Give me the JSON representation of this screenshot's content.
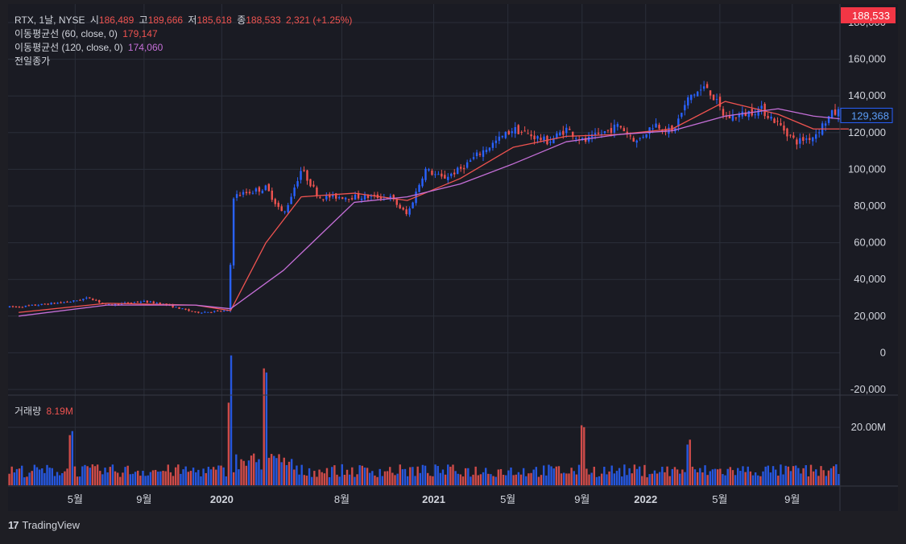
{
  "header": {
    "symbol_line": "RTX, 1날, NYSE",
    "open_label": "시",
    "open_value": "186,489",
    "high_label": "고",
    "high_value": "189,666",
    "low_label": "저",
    "low_value": "185,618",
    "close_label": "종",
    "close_value": "188,533",
    "change_value": "2,321 (+1.25%)",
    "ma60_label": "이동평균선 (60, close, 0)",
    "ma60_value": "179,147",
    "ma120_label": "이동평균선 (120, close, 0)",
    "ma120_value": "174,060",
    "prev_close_label": "전일종가"
  },
  "volume_pane": {
    "label": "거래량",
    "value": "8.19M"
  },
  "price_badges": {
    "last": "188,533",
    "marker": "129,368"
  },
  "branding": {
    "name": "TradingView"
  },
  "colors": {
    "background": "#1e1e24",
    "grid": "#2a2e39",
    "up": "#2962ff",
    "down": "#ef5350",
    "ma60": "#ef5350",
    "ma120": "#c56fd8",
    "text": "#d1d4dc",
    "badge_last": "#f23645",
    "badge_marker_border": "#2962ff"
  },
  "chart_data": [
    {
      "type": "candlestick",
      "title": "RTX, 1날, NYSE",
      "x_ticks": [
        "5월",
        "9월",
        "2020",
        "8월",
        "2021",
        "5월",
        "9월",
        "2022",
        "5월",
        "9월"
      ],
      "y_ticks": [
        "-20,000",
        "0",
        "20,000",
        "40,000",
        "60,000",
        "80,000",
        "100,000",
        "120,000",
        "140,000",
        "160,000",
        "180,000"
      ],
      "ylim": [
        -20000,
        190000
      ],
      "grid": true,
      "price_path": [
        {
          "x": "2019-01",
          "y": 25000
        },
        {
          "x": "2019-04",
          "y": 28000
        },
        {
          "x": "2019-05",
          "y": 30000
        },
        {
          "x": "2019-06",
          "y": 26000
        },
        {
          "x": "2019-08",
          "y": 28000
        },
        {
          "x": "2019-09",
          "y": 27000
        },
        {
          "x": "2019-11",
          "y": 22000
        },
        {
          "x": "2020-01",
          "y": 23000
        },
        {
          "x": "2020-01",
          "y": 85000
        },
        {
          "x": "2020-03",
          "y": 90000
        },
        {
          "x": "2020-04",
          "y": 75000
        },
        {
          "x": "2020-05",
          "y": 100000
        },
        {
          "x": "2020-06",
          "y": 85000
        },
        {
          "x": "2020-08",
          "y": 85000
        },
        {
          "x": "2020-10",
          "y": 85000
        },
        {
          "x": "2020-11",
          "y": 75000
        },
        {
          "x": "2020-12",
          "y": 100000
        },
        {
          "x": "2021-01",
          "y": 95000
        },
        {
          "x": "2021-02",
          "y": 100000
        },
        {
          "x": "2021-03",
          "y": 108000
        },
        {
          "x": "2021-04",
          "y": 115000
        },
        {
          "x": "2021-05",
          "y": 122000
        },
        {
          "x": "2021-07",
          "y": 115000
        },
        {
          "x": "2021-08",
          "y": 122000
        },
        {
          "x": "2021-09",
          "y": 115000
        },
        {
          "x": "2021-11",
          "y": 124000
        },
        {
          "x": "2021-12",
          "y": 115000
        },
        {
          "x": "2022-01",
          "y": 125000
        },
        {
          "x": "2022-02",
          "y": 120000
        },
        {
          "x": "2022-03",
          "y": 140000
        },
        {
          "x": "2022-04",
          "y": 145000
        },
        {
          "x": "2022-05",
          "y": 128000
        },
        {
          "x": "2022-06",
          "y": 130000
        },
        {
          "x": "2022-07",
          "y": 133000
        },
        {
          "x": "2022-08",
          "y": 125000
        },
        {
          "x": "2022-09",
          "y": 115000
        },
        {
          "x": "2022-10",
          "y": 118000
        },
        {
          "x": "2022-11",
          "y": 130000
        },
        {
          "x": "2022-12",
          "y": 133000
        }
      ],
      "series": [
        {
          "name": "이동평균선 (60, close, 0)",
          "values": [
            {
              "x": "2019-01",
              "y": 22000
            },
            {
              "x": "2019-06",
              "y": 27000
            },
            {
              "x": "2019-11",
              "y": 26000
            },
            {
              "x": "2020-01",
              "y": 23000
            },
            {
              "x": "2020-03",
              "y": 60000
            },
            {
              "x": "2020-05",
              "y": 85000
            },
            {
              "x": "2020-08",
              "y": 87000
            },
            {
              "x": "2020-11",
              "y": 83000
            },
            {
              "x": "2021-02",
              "y": 95000
            },
            {
              "x": "2021-05",
              "y": 112000
            },
            {
              "x": "2021-08",
              "y": 118000
            },
            {
              "x": "2021-11",
              "y": 119000
            },
            {
              "x": "2022-02",
              "y": 122000
            },
            {
              "x": "2022-05",
              "y": 137000
            },
            {
              "x": "2022-08",
              "y": 130000
            },
            {
              "x": "2022-10",
              "y": 122000
            },
            {
              "x": "2022-12",
              "y": 122000
            }
          ]
        },
        {
          "name": "이동평균선 (120, close, 0)",
          "values": [
            {
              "x": "2019-01",
              "y": 20000
            },
            {
              "x": "2019-06",
              "y": 26000
            },
            {
              "x": "2019-11",
              "y": 26000
            },
            {
              "x": "2020-01",
              "y": 24000
            },
            {
              "x": "2020-04",
              "y": 45000
            },
            {
              "x": "2020-08",
              "y": 82000
            },
            {
              "x": "2020-11",
              "y": 85000
            },
            {
              "x": "2021-02",
              "y": 92000
            },
            {
              "x": "2021-05",
              "y": 103000
            },
            {
              "x": "2021-08",
              "y": 115000
            },
            {
              "x": "2021-11",
              "y": 119000
            },
            {
              "x": "2022-02",
              "y": 121000
            },
            {
              "x": "2022-05",
              "y": 129000
            },
            {
              "x": "2022-08",
              "y": 133000
            },
            {
              "x": "2022-10",
              "y": 129000
            },
            {
              "x": "2022-12",
              "y": 127000
            }
          ]
        }
      ],
      "annotations": {
        "last_price": 188533,
        "marker_price": 129368
      }
    },
    {
      "type": "bar",
      "title": "거래량",
      "y_ticks": [
        "20.00M"
      ],
      "ylim": [
        0,
        30000000
      ],
      "approximate_level": 5000000,
      "peaks": [
        {
          "x": "2019-04",
          "y": 20000000
        },
        {
          "x": "2020-01",
          "y": 30000000
        },
        {
          "x": "2020-03",
          "y": 26000000
        },
        {
          "x": "2021-09",
          "y": 23000000
        },
        {
          "x": "2022-03",
          "y": 16000000
        }
      ]
    }
  ]
}
